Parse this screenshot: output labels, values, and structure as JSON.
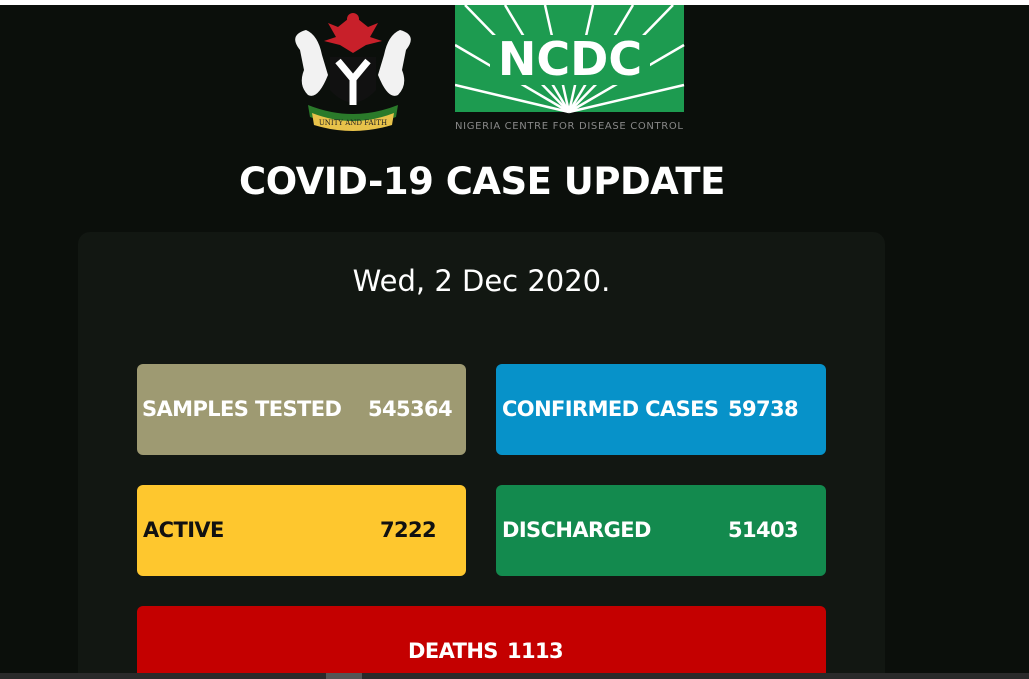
{
  "logos": {
    "coat_of_arms_motto": "UNITY AND FAITH",
    "ncdc_mark": "NCDC",
    "ncdc_name": "NIGERIA CENTRE FOR DISEASE CONTROL"
  },
  "header": {
    "title": "COVID-19 CASE UPDATE"
  },
  "panel": {
    "date": "Wed, 2 Dec 2020.",
    "cards": [
      {
        "label": "SAMPLES TESTED",
        "value": 545364
      },
      {
        "label": "CONFIRMED CASES",
        "value": 59738
      },
      {
        "label": "ACTIVE",
        "value": 7222
      },
      {
        "label": "DISCHARGED",
        "value": 51403
      },
      {
        "label": "DEATHS",
        "value": 1113
      }
    ]
  }
}
